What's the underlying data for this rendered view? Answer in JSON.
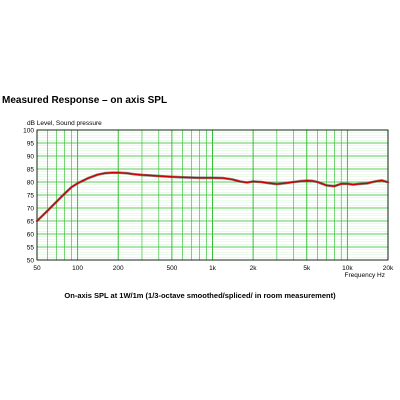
{
  "page_title": "Measured  Response  – on axis SPL",
  "caption": "On-axis SPL at 1W/1m (1/3-octave smoothed/spliced/ in room measurement)",
  "chart_data": {
    "type": "line",
    "ylabel": "dB Level, Sound pressure",
    "xlabel": "Frequency Hz",
    "xscale": "log",
    "xlim": [
      50,
      20000
    ],
    "ylim": [
      50,
      100
    ],
    "grid": true,
    "y_ticks": [
      100,
      95,
      90,
      85,
      80,
      75,
      70,
      65,
      60,
      55,
      50
    ],
    "x_ticks": [
      {
        "value": 50,
        "label": "50"
      },
      {
        "value": 100,
        "label": "100"
      },
      {
        "value": 200,
        "label": "200"
      },
      {
        "value": 500,
        "label": "500"
      },
      {
        "value": 1000,
        "label": "1k"
      },
      {
        "value": 2000,
        "label": "2k"
      },
      {
        "value": 5000,
        "label": "5k"
      },
      {
        "value": 10000,
        "label": "10k"
      },
      {
        "value": 20000,
        "label": "20k"
      }
    ],
    "x_grid_minor": [
      60,
      70,
      80,
      90,
      300,
      400,
      600,
      700,
      800,
      900,
      3000,
      4000,
      6000,
      7000,
      8000,
      9000
    ],
    "colors": {
      "grid": "#22bb22",
      "curve": "#cc0000",
      "curve_shadow": "#555555"
    },
    "series": [
      {
        "name": "",
        "x": [
          50,
          60,
          70,
          80,
          90,
          100,
          120,
          140,
          160,
          180,
          200,
          230,
          260,
          300,
          350,
          400,
          500,
          600,
          700,
          800,
          900,
          1000,
          1200,
          1400,
          1600,
          1800,
          2000,
          2300,
          2600,
          3000,
          3500,
          4000,
          4500,
          5000,
          5500,
          6000,
          7000,
          8000,
          9000,
          10000,
          11000,
          12500,
          14000,
          16000,
          18000,
          20000
        ],
        "y": [
          65,
          69,
          72.5,
          75.5,
          78,
          79.5,
          81.5,
          82.8,
          83.4,
          83.6,
          83.6,
          83.4,
          83.0,
          82.7,
          82.5,
          82.3,
          82.0,
          81.8,
          81.7,
          81.6,
          81.6,
          81.6,
          81.5,
          81.0,
          80.2,
          79.8,
          80.2,
          80.0,
          79.6,
          79.2,
          79.6,
          80.0,
          80.3,
          80.5,
          80.4,
          80.0,
          78.7,
          78.4,
          79.3,
          79.3,
          79.0,
          79.3,
          79.5,
          80.2,
          80.6,
          79.9
        ]
      }
    ]
  }
}
